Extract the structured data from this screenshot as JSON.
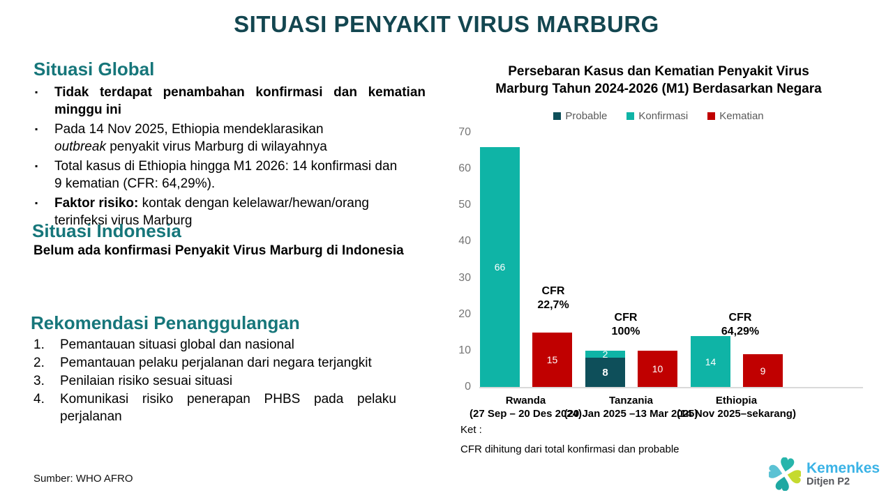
{
  "slide_title": "SITUASI PENYAKIT VIRUS MARBURG",
  "colors": {
    "title": "#134650",
    "heading": "#16767A",
    "probable": "#0E4F5A",
    "konfirmasi": "#0FB4A6",
    "kematian": "#C00000",
    "axis_text": "#757575",
    "legend_text": "#595959",
    "axis_line": "#D9D9D9",
    "logo_brand": "#3BB3E6",
    "logo_sub": "#54565B"
  },
  "left": {
    "global_heading": "Situasi Global",
    "global_bullets": [
      {
        "justify": true,
        "segments": [
          {
            "t": "Tidak terdapat penambahan konfirmasi dan kematian minggu ini",
            "b": true
          }
        ]
      },
      {
        "segments": [
          {
            "t": "Pada 14 Nov 2025, Ethiopia mendeklarasikan\n"
          },
          {
            "t": "outbreak",
            "i": true
          },
          {
            "t": " penyakit virus Marburg di wilayahnya"
          }
        ]
      },
      {
        "segments": [
          {
            "t": "Total kasus di Ethiopia hingga M1 2026: 14 konfirmasi dan\n9 kematian (CFR: 64,29%)."
          }
        ]
      },
      {
        "segments": [
          {
            "t": "Faktor risiko:",
            "b": true
          },
          {
            "t": " kontak dengan kelelawar/hewan/orang\nterinfeksi virus Marburg"
          }
        ]
      }
    ],
    "indonesia_heading": "Situasi Indonesia",
    "indonesia_text": "Belum ada konfirmasi Penyakit Virus Marburg di Indonesia",
    "rekomendasi_heading": "Rekomendasi Penanggulangan",
    "rekomendasi_items": [
      {
        "t": "Pemantauan situasi global dan nasional"
      },
      {
        "t": "Pemantauan pelaku perjalanan dari negara terjangkit"
      },
      {
        "t": "Penilaian risiko sesuai situasi"
      },
      {
        "t": "Komunikasi risiko penerapan PHBS pada pelaku perjalanan",
        "justify": true
      }
    ],
    "source": "Sumber: WHO AFRO"
  },
  "chart": {
    "title_lines": [
      "Persebaran Kasus dan Kematian Penyakit Virus",
      "Marburg Tahun 2024-2026 (M1) Berdasarkan Negara"
    ],
    "note_lines": [
      "Ket :",
      "CFR dihitung dari total konfirmasi dan probable"
    ]
  },
  "chart_data": {
    "type": "bar",
    "title": "Persebaran Kasus dan Kematian Penyakit Virus Marburg Tahun 2024-2026 (M1) Berdasarkan Negara",
    "categories": [
      "Rwanda (27 Sep – 20 Des 2024)",
      "Tanzania (20 Jan 2025 –13 Mar 2025)",
      "Ethiopia (14 Nov 2025–sekarang)"
    ],
    "category_label_lines": [
      [
        "Rwanda",
        "(27 Sep – 20 Des 2024)"
      ],
      [
        "Tanzania",
        "(20 Jan 2025 –13 Mar 2025)"
      ],
      [
        "Ethiopia",
        "(14 Nov 2025–sekarang)"
      ]
    ],
    "series": [
      {
        "name": "Probable",
        "color": "#0E4F5A",
        "values": [
          0,
          8,
          0
        ]
      },
      {
        "name": "Konfirmasi",
        "color": "#0FB4A6",
        "values": [
          66,
          2,
          14
        ]
      },
      {
        "name": "Kematian",
        "color": "#C00000",
        "values": [
          15,
          10,
          9
        ]
      }
    ],
    "stacking": "Probable and Konfirmasi stacked in first bar of each group; Kematian is second bar",
    "annotations": [
      "CFR\n22,7%",
      "CFR\n100%",
      "CFR\n64,29%"
    ],
    "ylim": [
      0,
      70
    ],
    "yticks": [
      0,
      10,
      20,
      30,
      40,
      50,
      60,
      70
    ],
    "grid": false,
    "legend_position": "top"
  },
  "logo": {
    "brand": "Kemenkes",
    "sub": "Ditjen P2"
  }
}
